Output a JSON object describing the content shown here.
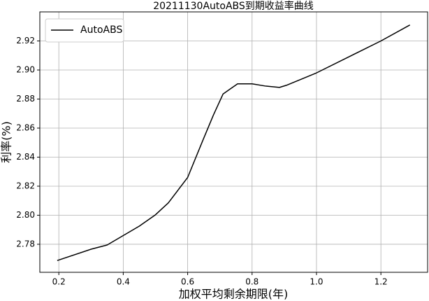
{
  "chart_data": {
    "type": "line",
    "title": "20211130AutoABS到期收益率曲线",
    "x_label": "加权平均剩余期限(年)",
    "y_label": "利率(%)",
    "x": [
      0.195,
      0.3,
      0.35,
      0.4,
      0.45,
      0.5,
      0.54,
      0.6,
      0.648,
      0.68,
      0.71,
      0.755,
      0.8,
      0.84,
      0.885,
      0.907,
      1.0,
      1.1,
      1.2,
      1.29
    ],
    "series": [
      {
        "name": "AutoABS",
        "color": "#000000",
        "values": [
          2.7688,
          2.7766,
          2.7795,
          2.786,
          2.7925,
          2.8003,
          2.8085,
          2.826,
          2.852,
          2.869,
          2.8835,
          2.8905,
          2.8905,
          2.889,
          2.888,
          2.8895,
          2.898,
          2.909,
          2.92,
          2.931
        ]
      }
    ],
    "xlim": [
      0.141,
      1.345
    ],
    "ylim": [
      2.7607,
      2.94
    ],
    "xticks": [
      0.2,
      0.4,
      0.6,
      0.8,
      {
        "value": 1,
        "label": "1.0"
      },
      1.2
    ],
    "yticks": [
      2.78,
      {
        "value": 2.8,
        "label": "2.80"
      },
      2.82,
      2.84,
      2.86,
      2.88,
      {
        "value": 2.9,
        "label": "2.90"
      },
      2.92
    ],
    "grid": true,
    "legend": "upper-left"
  }
}
